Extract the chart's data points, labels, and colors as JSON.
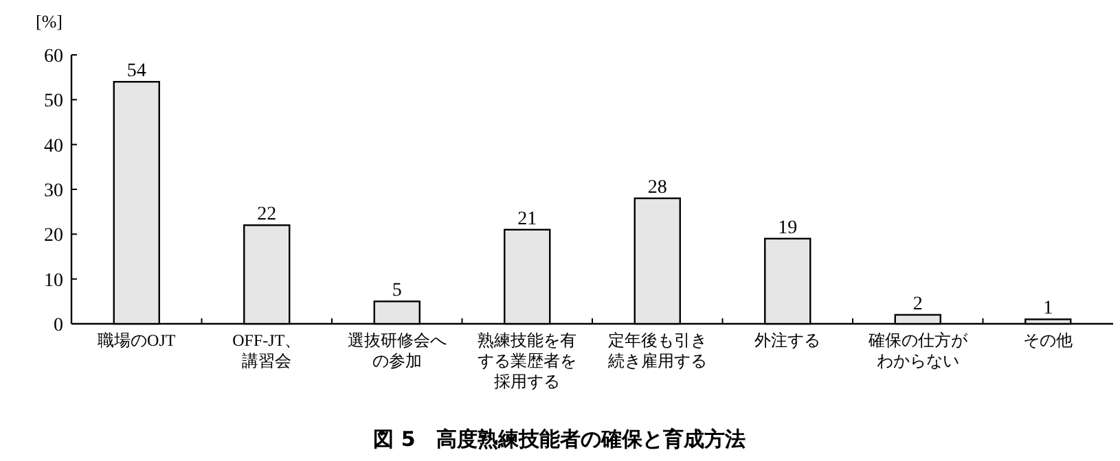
{
  "chart_data": {
    "type": "bar",
    "title": "図 5　高度熟練技能者の確保と育成方法",
    "ylabel": "[%]",
    "categories": [
      "職場のOJT",
      "OFF-JT、講習会",
      "選抜研修会への参加",
      "熟練技能を有する業歴者を採用する",
      "定年後も引き続き雇用する",
      "外注する",
      "確保の仕方がわからない",
      "その他"
    ],
    "values": [
      54,
      22,
      5,
      21,
      28,
      19,
      2,
      1
    ],
    "color": "#e6e6e6",
    "ylim": [
      0,
      60
    ],
    "yticks": [
      0,
      10,
      20,
      30,
      40,
      50,
      60
    ],
    "data_labels": true,
    "grid": false
  }
}
